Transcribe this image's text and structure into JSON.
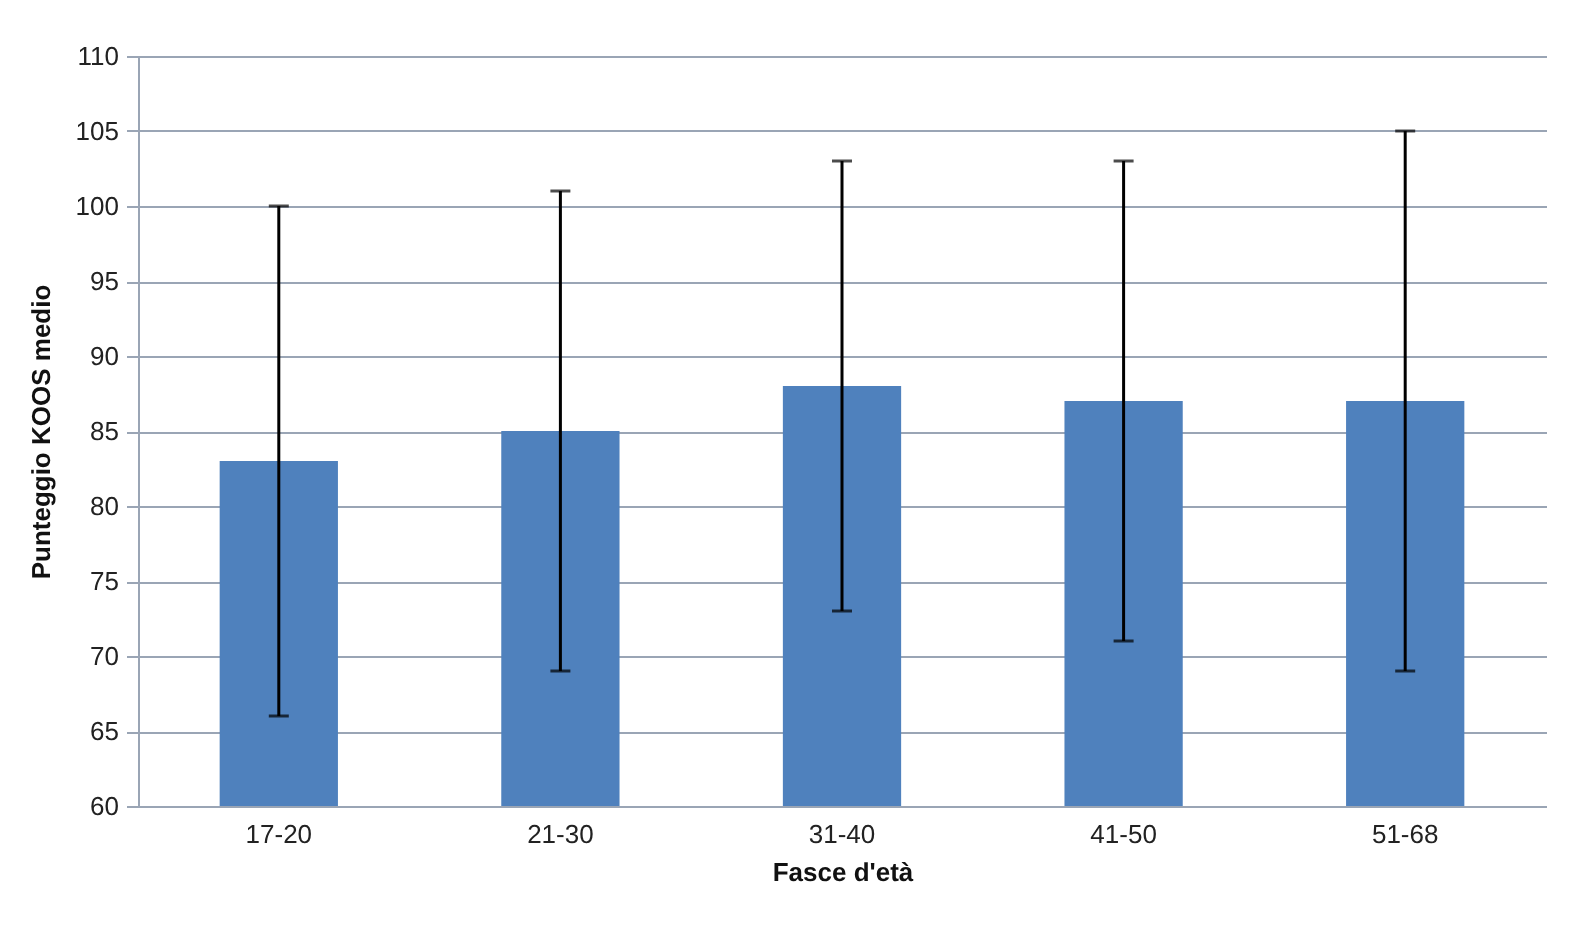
{
  "chart_data": {
    "type": "bar",
    "xlabel": "Fasce d'età",
    "ylabel": "Punteggio KOOS medio",
    "categories": [
      "17-20",
      "21-30",
      "31-40",
      "41-50",
      "51-68"
    ],
    "values": [
      83,
      85,
      88,
      87,
      87
    ],
    "errors": [
      17,
      16,
      15,
      16,
      18
    ],
    "color": "#4f81bd",
    "ylim": [
      60,
      110
    ],
    "yticks": [
      60,
      65,
      70,
      75,
      80,
      85,
      90,
      95,
      100,
      105,
      110
    ],
    "grid": "y"
  }
}
